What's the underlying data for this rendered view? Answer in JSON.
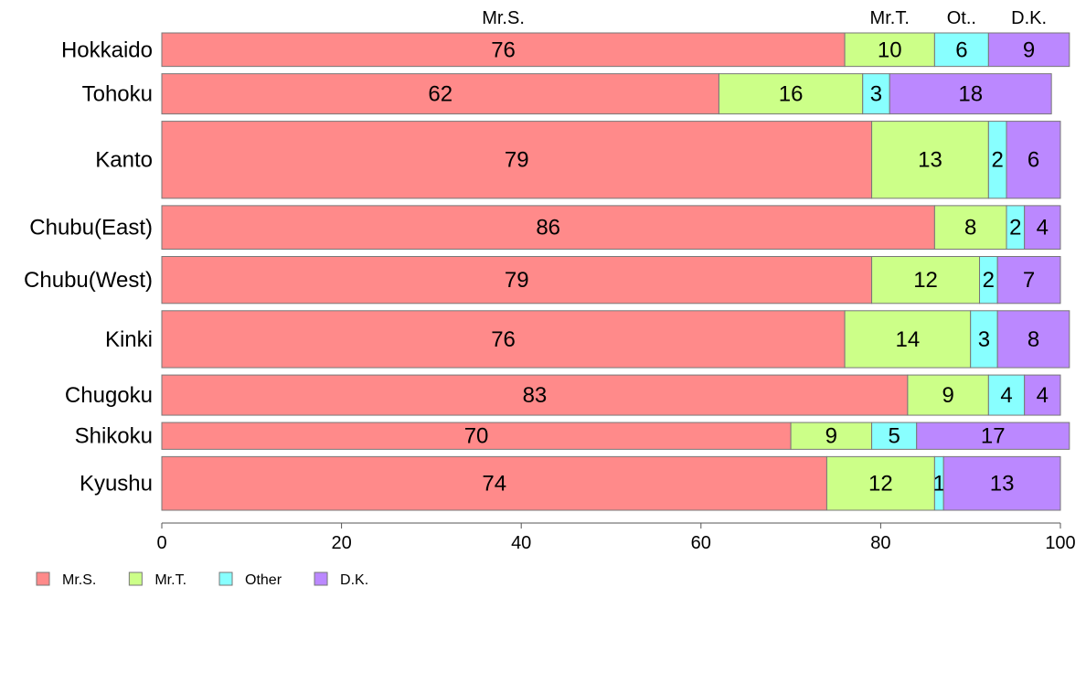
{
  "chart_data": {
    "type": "bar",
    "orientation": "horizontal",
    "stacked": true,
    "categories": [
      "Hokkaido",
      "Tohoku",
      "Kanto",
      "Chubu(East)",
      "Chubu(West)",
      "Kinki",
      "Chugoku",
      "Shikoku",
      "Kyushu"
    ],
    "relative_widths": [
      1.0,
      1.2,
      2.3,
      1.3,
      1.4,
      1.7,
      1.2,
      0.8,
      1.6
    ],
    "series": [
      {
        "name": "Mr.S.",
        "top_label": "Mr.S.",
        "color": "#FF8A8A",
        "values": [
          76,
          62,
          79,
          86,
          79,
          76,
          83,
          70,
          74
        ]
      },
      {
        "name": "Mr.T.",
        "top_label": "Mr.T.",
        "color": "#CCFF88",
        "values": [
          10,
          16,
          13,
          8,
          12,
          14,
          9,
          9,
          12
        ]
      },
      {
        "name": "Other",
        "top_label": "Ot..",
        "color": "#88FFFF",
        "values": [
          6,
          3,
          2,
          2,
          2,
          3,
          4,
          5,
          1
        ]
      },
      {
        "name": "D.K.",
        "top_label": "D.K.",
        "color": "#BB88FF",
        "values": [
          9,
          18,
          6,
          4,
          7,
          8,
          4,
          17,
          13
        ]
      }
    ],
    "xlim": [
      0,
      100
    ],
    "xticks": [
      "0",
      "20",
      "40",
      "60",
      "80",
      "100"
    ],
    "legend_position": "bottom-left",
    "title": "",
    "xlabel": "",
    "ylabel": ""
  }
}
